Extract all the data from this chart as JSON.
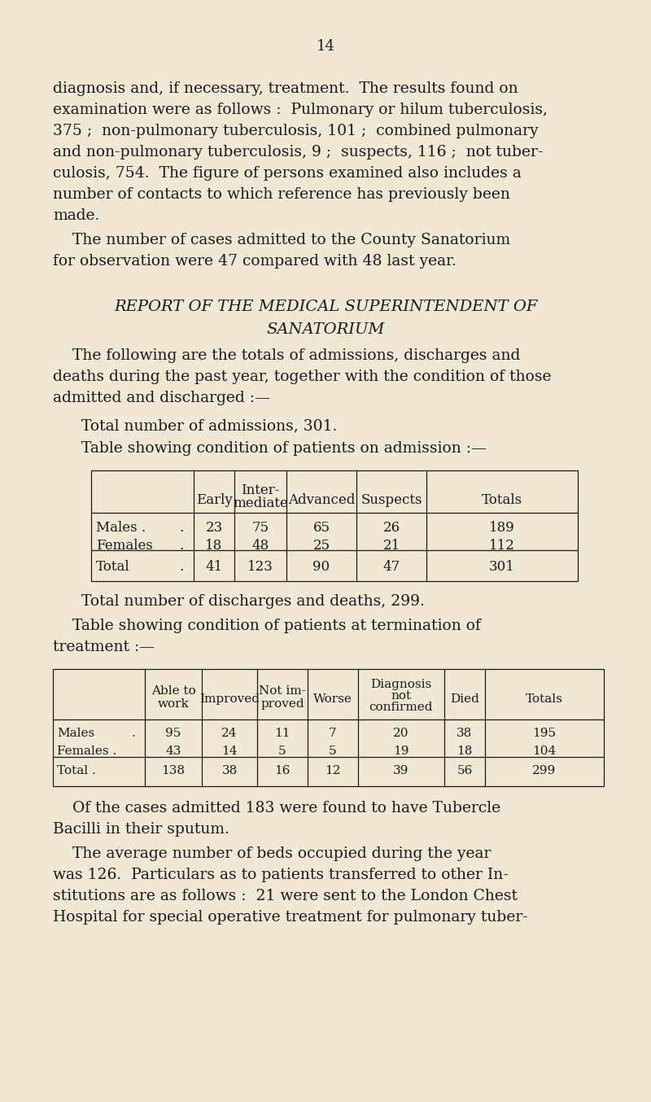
{
  "bg_color": "#f0e8d5",
  "text_color": "#1a1a1a",
  "page_number": "14",
  "para1_lines": [
    "diagnosis and, if necessary, treatment.  The results found on",
    "examination were as follows :  Pulmonary or hilum tuberculosis,",
    "375 ;  non-pulmonary tuberculosis, 101 ;  combined pulmonary",
    "and non-pulmonary tuberculosis, 9 ;  suspects, 116 ;  not tuber-",
    "culosis, 754.  The figure of persons examined also includes a",
    "number of contacts to which reference has previously been",
    "made."
  ],
  "para2_lines": [
    "    The number of cases admitted to the County Sanatorium",
    "for observation were 47 compared with 48 last year."
  ],
  "heading_line1": "REPORT OF THE MEDICAL SUPERINTENDENT OF",
  "heading_line2": "SANATORIUM",
  "para3_lines": [
    "    The following are the totals of admissions, discharges and",
    "deaths during the past year, together with the condition of those",
    "admitted and discharged :—"
  ],
  "line1": "Total number of admissions, 301.",
  "line2": "Table showing condition of patients on admission :—",
  "t1_col_headers": [
    "Early",
    "Inter-\nmediate",
    "Advanced",
    "Suspects",
    "Totals"
  ],
  "t1_male": [
    "Males .",
    ".",
    "23",
    "75",
    "65",
    "26",
    "189"
  ],
  "t1_female": [
    "Females",
    ".",
    "18",
    "48",
    "25",
    "21",
    "112"
  ],
  "t1_total": [
    "Total",
    ".",
    "41",
    "123",
    "90",
    "47",
    "301"
  ],
  "line3": "Total number of discharges and deaths, 299.",
  "line4a": "    Table showing condition of patients at termination of",
  "line4b": "treatment :—",
  "t2_col_headers": [
    "Able to\nwork",
    "Improved",
    "Not im-\nproved",
    "Worse",
    "Diagnosis\nnot\nconfirmed",
    "Died",
    "Totals"
  ],
  "t2_male": [
    "Males",
    ".",
    "95",
    "24",
    "11",
    "7",
    "20",
    "38",
    "195"
  ],
  "t2_female": [
    "Females .",
    "",
    "43",
    "14",
    "5",
    "5",
    "19",
    "18",
    "104"
  ],
  "t2_total": [
    "Total .",
    "",
    "138",
    "38",
    "16",
    "12",
    "39",
    "56",
    "299"
  ],
  "para4_lines": [
    "    Of the cases admitted 183 were found to have Tubercle",
    "Bacilli in their sputum."
  ],
  "para5_lines": [
    "    The average number of beds occupied during the year",
    "was 126.  Particulars as to patients transferred to other In-",
    "stitutions are as follows :  21 were sent to the London Chest",
    "Hospital for special operative treatment for pulmonary tuber-"
  ]
}
